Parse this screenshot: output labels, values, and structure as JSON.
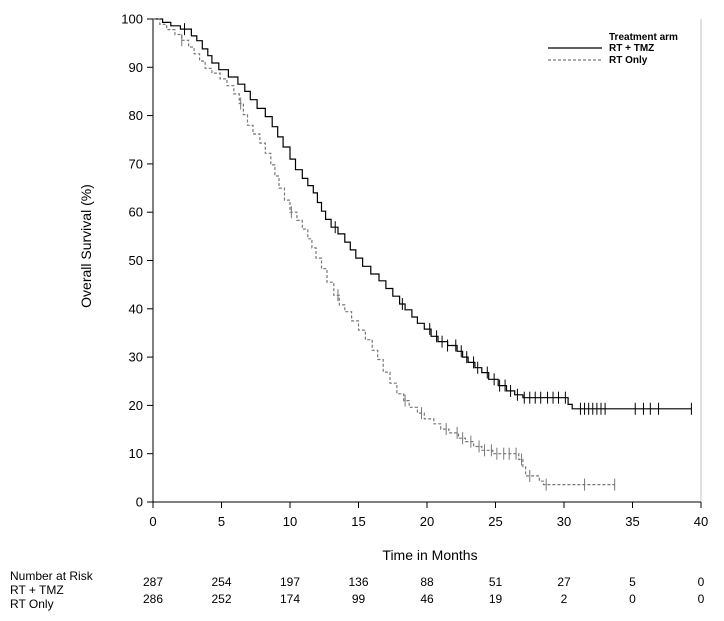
{
  "chart_data": {
    "type": "line",
    "subtype": "kaplan-meier",
    "xlabel": "Time in Months",
    "ylabel": "Overall Survival (%)",
    "xlim": [
      0,
      40
    ],
    "ylim": [
      0,
      100
    ],
    "x_ticks": [
      0,
      5,
      10,
      15,
      20,
      25,
      30,
      35,
      40
    ],
    "y_ticks": [
      0,
      10,
      20,
      30,
      40,
      50,
      60,
      70,
      80,
      90,
      100
    ],
    "grid": false,
    "legend": {
      "title": "Treatment arm",
      "position": "top-right",
      "entries": [
        "RT + TMZ",
        "RT Only"
      ]
    },
    "series": [
      {
        "name": "RT + TMZ",
        "style": "solid",
        "color": "#000000",
        "points": [
          [
            0,
            100
          ],
          [
            0.7,
            99.3
          ],
          [
            1.3,
            98.6
          ],
          [
            2,
            97.9
          ],
          [
            2.8,
            96.5
          ],
          [
            3.2,
            95.5
          ],
          [
            3.6,
            93.8
          ],
          [
            4,
            92.4
          ],
          [
            4.3,
            90.9
          ],
          [
            4.8,
            89.5
          ],
          [
            5.5,
            88
          ],
          [
            6.2,
            86.5
          ],
          [
            6.7,
            85
          ],
          [
            7.1,
            83.3
          ],
          [
            7.6,
            81.5
          ],
          [
            8.2,
            79.8
          ],
          [
            8.7,
            77.7
          ],
          [
            9.1,
            75.6
          ],
          [
            9.5,
            73.5
          ],
          [
            10,
            71
          ],
          [
            10.4,
            68.8
          ],
          [
            10.9,
            67
          ],
          [
            11.3,
            65.5
          ],
          [
            11.7,
            64
          ],
          [
            12,
            62
          ],
          [
            12.3,
            60.2
          ],
          [
            12.6,
            58.5
          ],
          [
            13,
            56.9
          ],
          [
            13.5,
            55.5
          ],
          [
            14,
            53.8
          ],
          [
            14.4,
            52.2
          ],
          [
            14.8,
            50.5
          ],
          [
            15.3,
            48.8
          ],
          [
            15.9,
            47.2
          ],
          [
            16.5,
            45.8
          ],
          [
            17,
            44.2
          ],
          [
            17.5,
            42.6
          ],
          [
            18,
            41
          ],
          [
            18.4,
            39.8
          ],
          [
            18.9,
            38.3
          ],
          [
            19.3,
            37
          ],
          [
            19.8,
            35.8
          ],
          [
            20.3,
            34.3
          ],
          [
            20.8,
            33.2
          ],
          [
            21.5,
            32.4
          ],
          [
            22.2,
            31.2
          ],
          [
            22.6,
            30
          ],
          [
            23,
            28.9
          ],
          [
            23.5,
            27.8
          ],
          [
            24,
            26.8
          ],
          [
            24.5,
            25.4
          ],
          [
            25.2,
            24.1
          ],
          [
            25.8,
            23
          ],
          [
            26.4,
            22.2
          ],
          [
            27,
            21.6
          ],
          [
            30,
            21.6
          ],
          [
            30.3,
            20.2
          ],
          [
            30.6,
            19.3
          ],
          [
            39.3,
            19.3
          ]
        ],
        "censored": [
          2.3,
          13.3,
          18.2,
          20.2,
          20.7,
          21.1,
          21.5,
          22.1,
          22.5,
          22.9,
          23.4,
          23.7,
          24.4,
          24.9,
          25.3,
          25.7,
          26.1,
          26.6,
          27.1,
          27.5,
          27.9,
          28.3,
          28.8,
          29.2,
          29.6,
          30.1,
          31.2,
          31.5,
          31.8,
          32.1,
          32.4,
          32.7,
          33,
          35.2,
          35.8,
          36.3,
          36.9,
          39.3
        ]
      },
      {
        "name": "RT Only",
        "style": "dashed",
        "color": "#777777",
        "points": [
          [
            0,
            100
          ],
          [
            0.5,
            98.9
          ],
          [
            1,
            97.8
          ],
          [
            1.6,
            96.8
          ],
          [
            2.1,
            95.6
          ],
          [
            2.6,
            94.2
          ],
          [
            3,
            92.8
          ],
          [
            3.4,
            91.3
          ],
          [
            3.8,
            89.8
          ],
          [
            4.3,
            88.8
          ],
          [
            4.9,
            87.6
          ],
          [
            5.4,
            86.2
          ],
          [
            5.9,
            84.5
          ],
          [
            6.3,
            82.5
          ],
          [
            6.6,
            80.2
          ],
          [
            6.9,
            78
          ],
          [
            7.3,
            76.2
          ],
          [
            7.8,
            74.3
          ],
          [
            8.2,
            72.2
          ],
          [
            8.6,
            69.8
          ],
          [
            8.9,
            67.5
          ],
          [
            9.2,
            65
          ],
          [
            9.6,
            62.5
          ],
          [
            10,
            60
          ],
          [
            10.5,
            58.3
          ],
          [
            10.9,
            56.5
          ],
          [
            11.3,
            54.5
          ],
          [
            11.6,
            52.6
          ],
          [
            11.9,
            50.5
          ],
          [
            12.3,
            48.3
          ],
          [
            12.7,
            45.5
          ],
          [
            13.2,
            42.8
          ],
          [
            13.6,
            40.8
          ],
          [
            14,
            39.4
          ],
          [
            14.5,
            37.5
          ],
          [
            15,
            35.6
          ],
          [
            15.5,
            33.6
          ],
          [
            16,
            31.4
          ],
          [
            16.4,
            29.5
          ],
          [
            16.8,
            26.9
          ],
          [
            17.3,
            24.6
          ],
          [
            17.8,
            22.4
          ],
          [
            18.3,
            21
          ],
          [
            18.7,
            19.6
          ],
          [
            19.3,
            18.4
          ],
          [
            19.8,
            17.2
          ],
          [
            20.5,
            16.2
          ],
          [
            21,
            15.1
          ],
          [
            21.6,
            14.3
          ],
          [
            22.3,
            13.2
          ],
          [
            22.8,
            12.5
          ],
          [
            23.4,
            11.5
          ],
          [
            24,
            10.7
          ],
          [
            24.8,
            10
          ],
          [
            26.1,
            10
          ],
          [
            26.7,
            8.8
          ],
          [
            27,
            7.3
          ],
          [
            27.2,
            5.4
          ],
          [
            27.8,
            5.4
          ],
          [
            28.2,
            4.3
          ],
          [
            28.5,
            3.6
          ],
          [
            33.7,
            3.6
          ]
        ],
        "censored": [
          2.1,
          6.4,
          10.1,
          13.5,
          18.4,
          19.6,
          21.4,
          22.2,
          22.6,
          23.2,
          23.8,
          24.2,
          24.7,
          25.1,
          25.6,
          26,
          26.5,
          26.9,
          27.5,
          28.7,
          31.5,
          33.7
        ]
      }
    ],
    "risk_table": {
      "title": "Number at Risk",
      "times": [
        0,
        5,
        10,
        15,
        20,
        25,
        30,
        35,
        40
      ],
      "rows": [
        {
          "name": "RT + TMZ",
          "values": [
            "287",
            "254",
            "197",
            "136",
            "88",
            "51",
            "27",
            "5",
            "0"
          ]
        },
        {
          "name": "RT Only",
          "values": [
            "286",
            "252",
            "174",
            "99",
            "46",
            "19",
            "2",
            "0",
            "0"
          ]
        }
      ]
    }
  }
}
